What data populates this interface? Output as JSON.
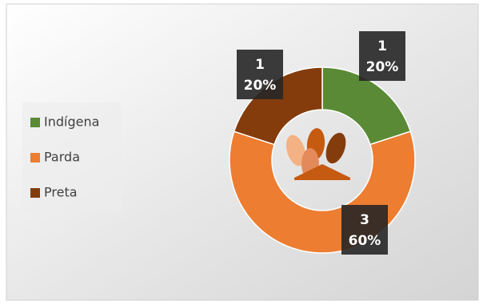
{
  "chart_data": {
    "type": "donut",
    "categories": [
      "Indígena",
      "Parda",
      "Preta"
    ],
    "values": [
      1,
      3,
      1
    ],
    "percents": [
      20,
      60,
      20
    ],
    "percent_labels": [
      "20%",
      "60%",
      "20%"
    ],
    "colors": [
      "#5a8a35",
      "#ed7d31",
      "#843c0c"
    ],
    "legend": "left"
  }
}
